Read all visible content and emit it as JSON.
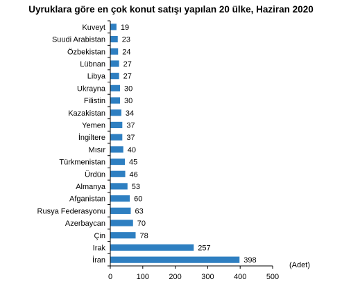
{
  "chart_data": {
    "type": "bar",
    "orientation": "horizontal",
    "title": "Uyruklara göre en çok konut satışı yapılan 20 ülke, Haziran 2020",
    "xlabel": "(Adet)",
    "ylabel": "",
    "xlim": [
      0,
      500
    ],
    "x_ticks": [
      0,
      100,
      200,
      300,
      400,
      500
    ],
    "grid": false,
    "bar_color": "#2e7fc1",
    "categories": [
      "Kuveyt",
      "Suudi Arabistan",
      "Özbekistan",
      "Lübnan",
      "Libya",
      "Ukrayna",
      "Filistin",
      "Kazakistan",
      "Yemen",
      "İngiltere",
      "Mısır",
      "Türkmenistan",
      "Ürdün",
      "Almanya",
      "Afganistan",
      "Rusya Federasyonu",
      "Azerbaycan",
      "Çin",
      "Irak",
      "İran"
    ],
    "values": [
      19,
      23,
      24,
      27,
      27,
      30,
      30,
      34,
      37,
      37,
      40,
      45,
      46,
      53,
      60,
      63,
      70,
      78,
      257,
      398
    ]
  }
}
